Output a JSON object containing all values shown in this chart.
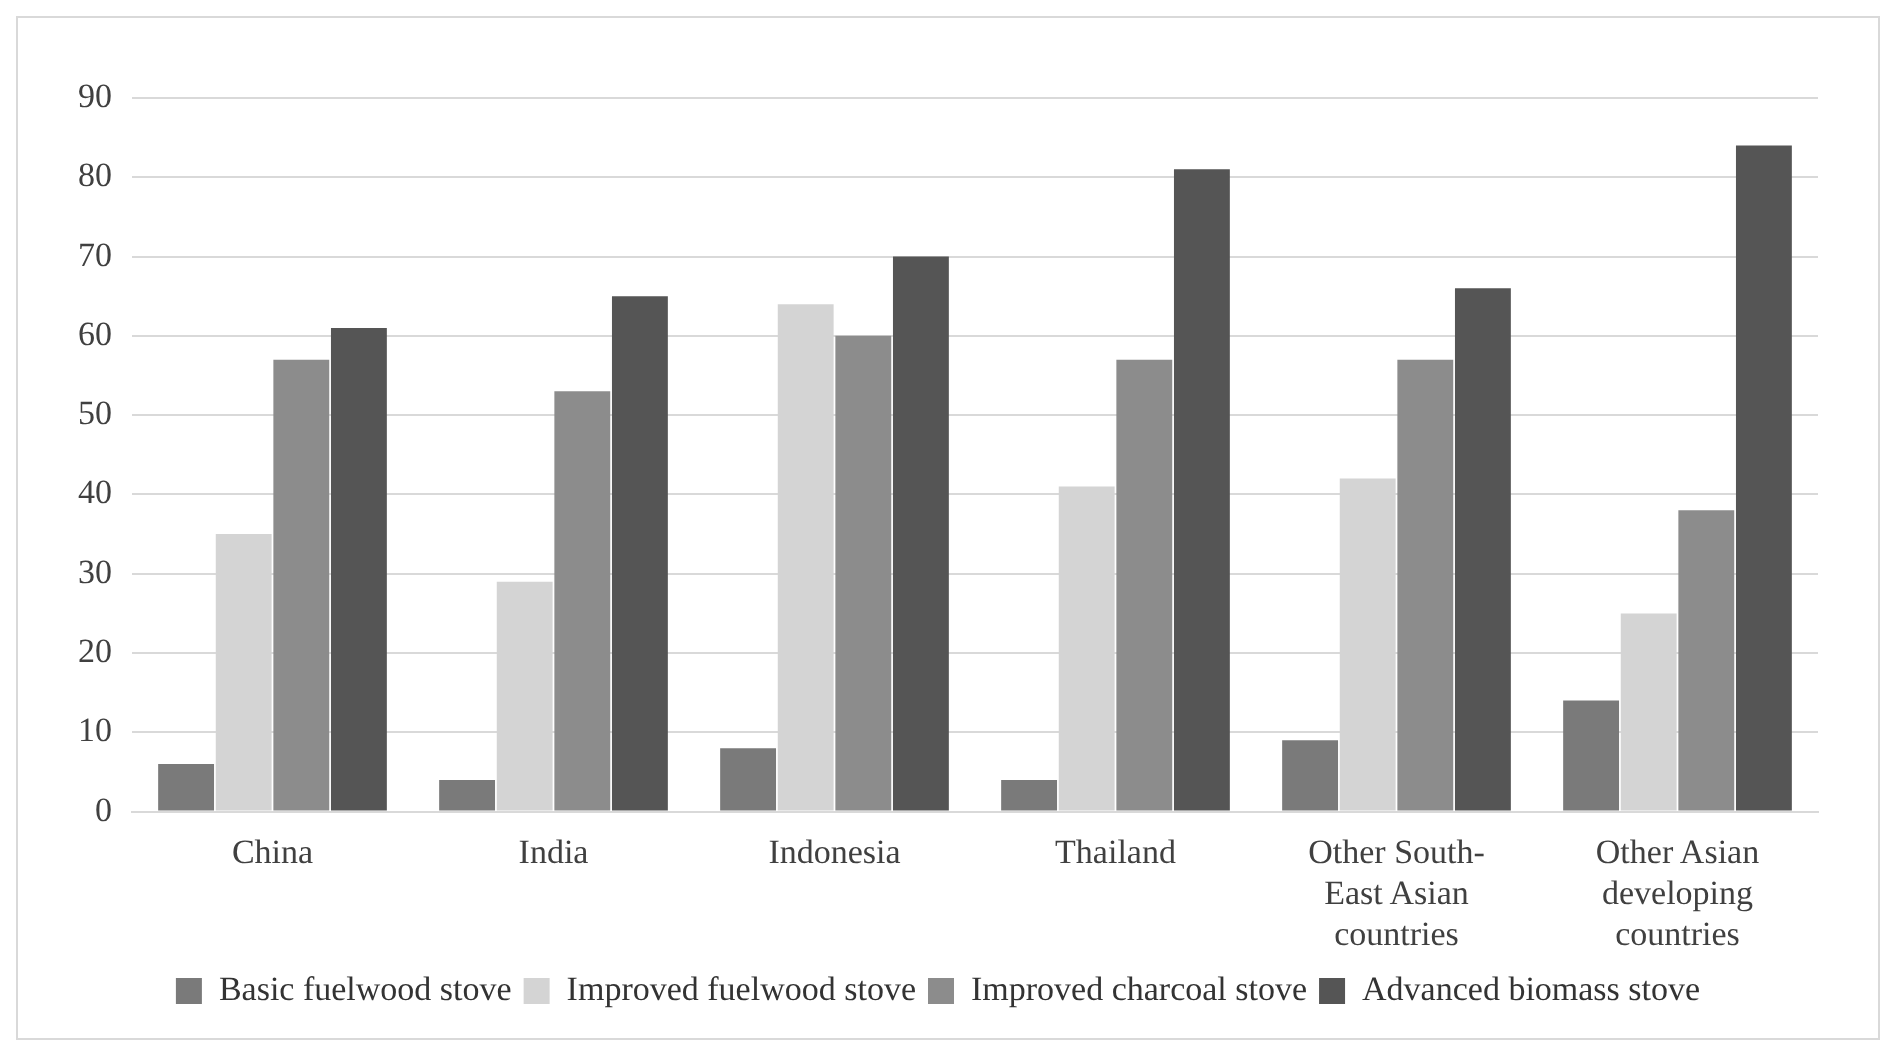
{
  "chart_data": {
    "type": "bar",
    "categories": [
      "China",
      "India",
      "Indonesia",
      "Thailand",
      "Other South-East Asian countries",
      "Other Asian developing countries"
    ],
    "series": [
      {
        "name": "Basic fuelwood stove",
        "color": "#7a7a7a",
        "values": [
          6,
          4,
          8,
          4,
          9,
          14
        ]
      },
      {
        "name": "Improved fuelwood stove",
        "color": "#d4d4d4",
        "values": [
          35,
          29,
          64,
          41,
          42,
          25
        ]
      },
      {
        "name": "Improved charcoal stove",
        "color": "#8c8c8c",
        "values": [
          57,
          53,
          60,
          57,
          57,
          38
        ]
      },
      {
        "name": "Advanced biomass stove",
        "color": "#555555",
        "values": [
          61,
          65,
          70,
          81,
          66,
          84
        ]
      }
    ],
    "ylim": [
      0,
      90
    ],
    "yticks": [
      0,
      10,
      20,
      30,
      40,
      50,
      60,
      70,
      80,
      90
    ],
    "grid": "y",
    "legend": "bottom"
  }
}
